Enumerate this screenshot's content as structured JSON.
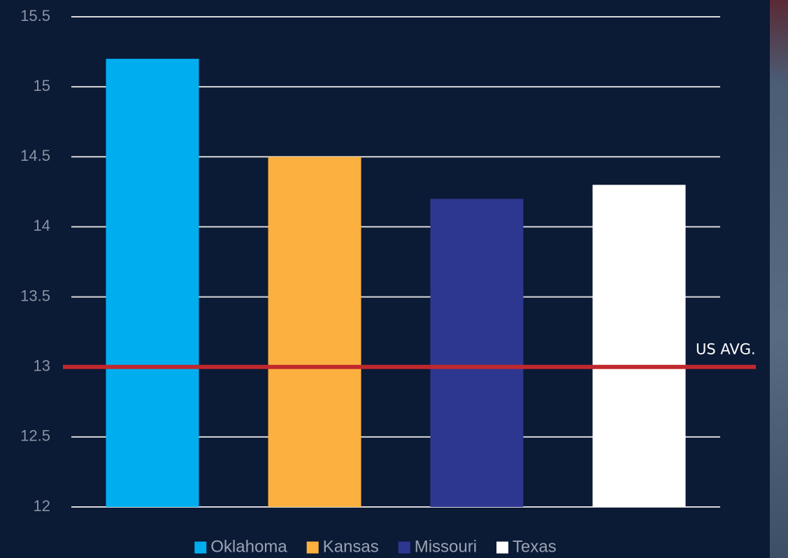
{
  "chart_data": {
    "type": "bar",
    "series": [
      {
        "name": "Oklahoma",
        "color": "#00aeef",
        "values": [
          15.2
        ]
      },
      {
        "name": "Kansas",
        "color": "#fbb040",
        "values": [
          14.5
        ]
      },
      {
        "name": "Missouri",
        "color": "#2e3790",
        "values": [
          14.2
        ]
      },
      {
        "name": "Texas",
        "color": "#ffffff",
        "values": [
          14.3
        ]
      }
    ],
    "ylim": [
      12,
      15.5
    ],
    "yticks": [
      12,
      12.5,
      13,
      13.5,
      14,
      14.5,
      15,
      15.5
    ],
    "grid": true,
    "legend": "bottom",
    "reference_lines": [
      {
        "value": 13,
        "label": "US AVG.",
        "color": "#c0282d"
      }
    ]
  }
}
